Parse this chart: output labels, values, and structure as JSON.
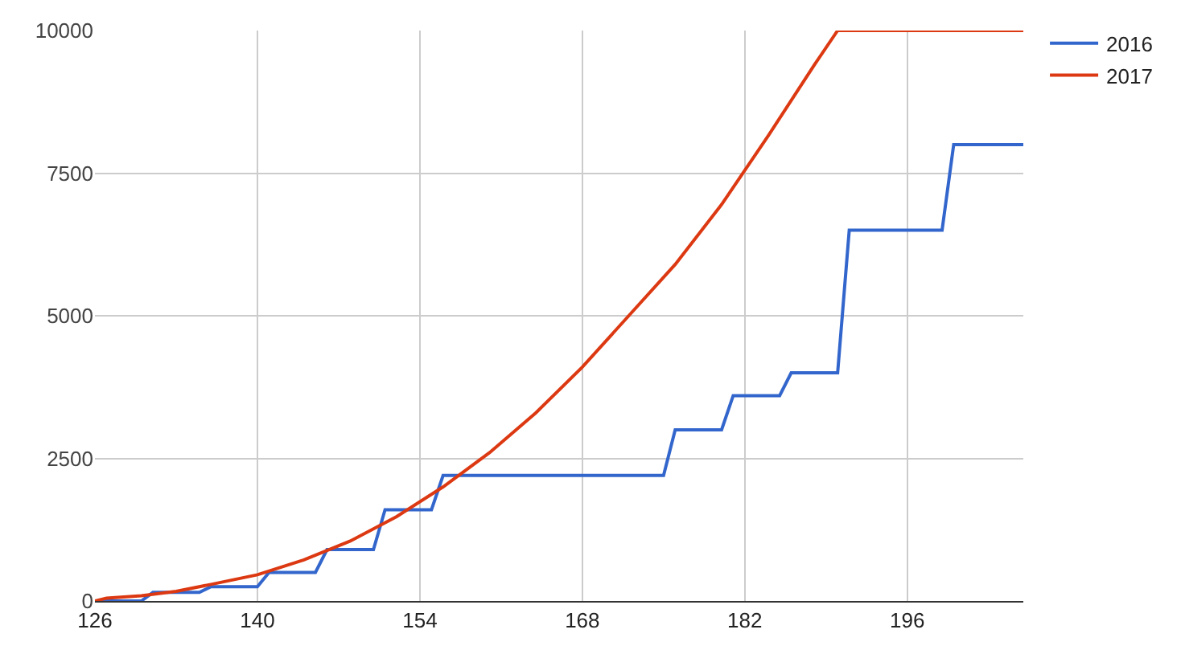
{
  "chart_data": {
    "type": "line",
    "series": [
      {
        "name": "2016",
        "color": "#3366cc",
        "x": [
          126,
          130,
          131,
          135,
          136,
          140,
          141,
          145,
          146,
          150,
          151,
          155,
          156,
          175,
          176,
          180,
          181,
          185,
          186,
          190,
          191,
          199,
          200,
          206
        ],
        "values": [
          0,
          0,
          150,
          150,
          250,
          250,
          500,
          500,
          900,
          900,
          1600,
          1600,
          2200,
          2200,
          3000,
          3000,
          3600,
          3600,
          4000,
          4000,
          6500,
          6500,
          8000,
          8000
        ]
      },
      {
        "name": "2017",
        "color": "#dc3912",
        "x": [
          126,
          127,
          130,
          133,
          136,
          140,
          144,
          148,
          152,
          156,
          160,
          164,
          168,
          172,
          176,
          180,
          184,
          188,
          190,
          206
        ],
        "values": [
          0,
          50,
          90,
          170,
          290,
          460,
          720,
          1050,
          1480,
          2000,
          2600,
          3300,
          4100,
          5000,
          5900,
          6950,
          8150,
          9400,
          10000,
          10000
        ]
      }
    ],
    "xlim": [
      126,
      206
    ],
    "xticks": [
      126,
      140,
      154,
      168,
      182,
      196
    ],
    "ylim": [
      0,
      10000
    ],
    "yticks": [
      0,
      2500,
      5000,
      7500,
      10000
    ],
    "grid": true,
    "legend": "top right",
    "line_style": "solid",
    "marker": "none"
  }
}
